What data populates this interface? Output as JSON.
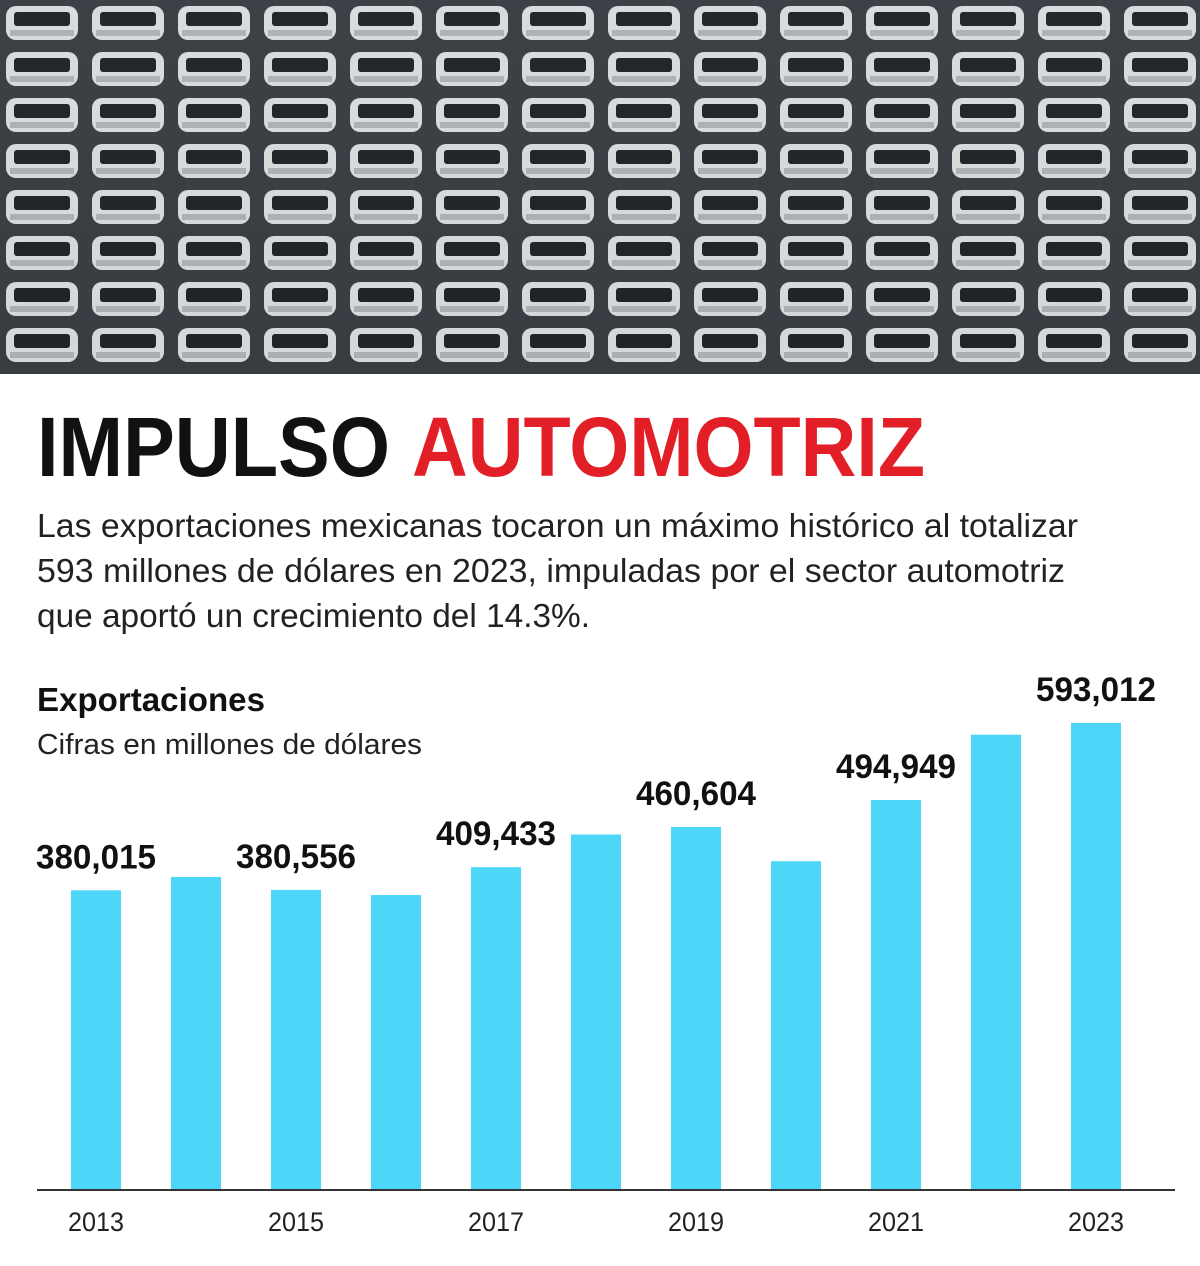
{
  "header": {
    "title_black": "IMPULSO",
    "title_red": "AUTOMOTRIZ",
    "subtitle_lines": [
      "Las exportaciones mexicanas tocaron un máximo histórico al totalizar",
      "593 millones de dólares en 2023, impuladas por el sector automotriz",
      "que aportó un crecimiento del 14.3%."
    ]
  },
  "chart_data": {
    "type": "bar",
    "title": "Exportaciones",
    "subtitle": "Cifras en millones de dólares",
    "categories": [
      "2013",
      null,
      "2015",
      null,
      "2017",
      null,
      "2019",
      null,
      "2021",
      null,
      "2023"
    ],
    "values": [
      380015,
      397000,
      380556,
      374000,
      409433,
      451000,
      460604,
      417000,
      494949,
      578000,
      593012
    ],
    "value_labels": [
      "380,015",
      null,
      "380,556",
      null,
      "409,433",
      null,
      "460,604",
      null,
      "494,949",
      null,
      "593,012"
    ],
    "color": "#4dd6f7"
  }
}
